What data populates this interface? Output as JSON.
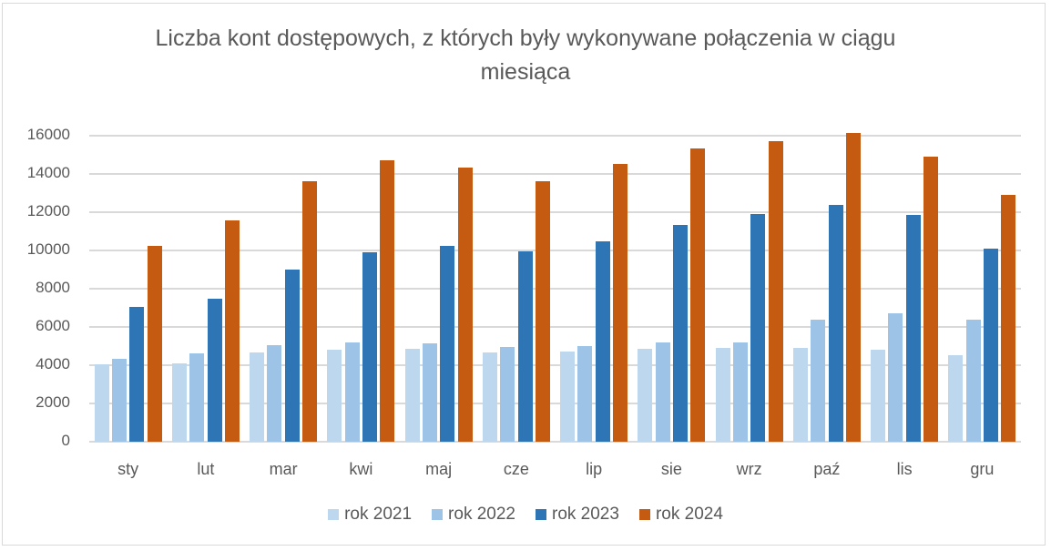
{
  "chart_data": {
    "type": "bar",
    "title": "Liczba kont dostępowych, z których były wykonywane połączenia w ciągu miesiąca",
    "title_lines": [
      "Liczba kont dostępowych, z których były wykonywane połączenia w ciągu",
      "miesiąca"
    ],
    "xlabel": "",
    "ylabel": "",
    "ylim": [
      0,
      16000
    ],
    "yticks": [
      "0",
      "2000",
      "4000",
      "6000",
      "8000",
      "10000",
      "12000",
      "14000",
      "16000"
    ],
    "grid": true,
    "legend_position": "bottom",
    "categories": [
      "sty",
      "lut",
      "mar",
      "kwi",
      "maj",
      "cze",
      "lip",
      "sie",
      "wrz",
      "paź",
      "lis",
      "gru"
    ],
    "series": [
      {
        "name": "rok 2021",
        "color": "#bdd7ee",
        "values": [
          4030,
          4100,
          4670,
          4810,
          4860,
          4670,
          4710,
          4860,
          4900,
          4900,
          4810,
          4520
        ]
      },
      {
        "name": "rok 2022",
        "color": "#9dc3e6",
        "values": [
          4330,
          4620,
          5050,
          5190,
          5140,
          4950,
          5000,
          5190,
          5190,
          6380,
          6710,
          6380
        ]
      },
      {
        "name": "rok 2023",
        "color": "#2e75b6",
        "values": [
          7050,
          7480,
          9000,
          9900,
          10240,
          9950,
          10480,
          11330,
          11900,
          12380,
          11860,
          10100
        ]
      },
      {
        "name": "rok 2024",
        "color": "#c55a11",
        "values": [
          10240,
          11570,
          13620,
          14710,
          14330,
          13620,
          14520,
          15330,
          15710,
          16140,
          14900,
          12900
        ]
      }
    ]
  }
}
